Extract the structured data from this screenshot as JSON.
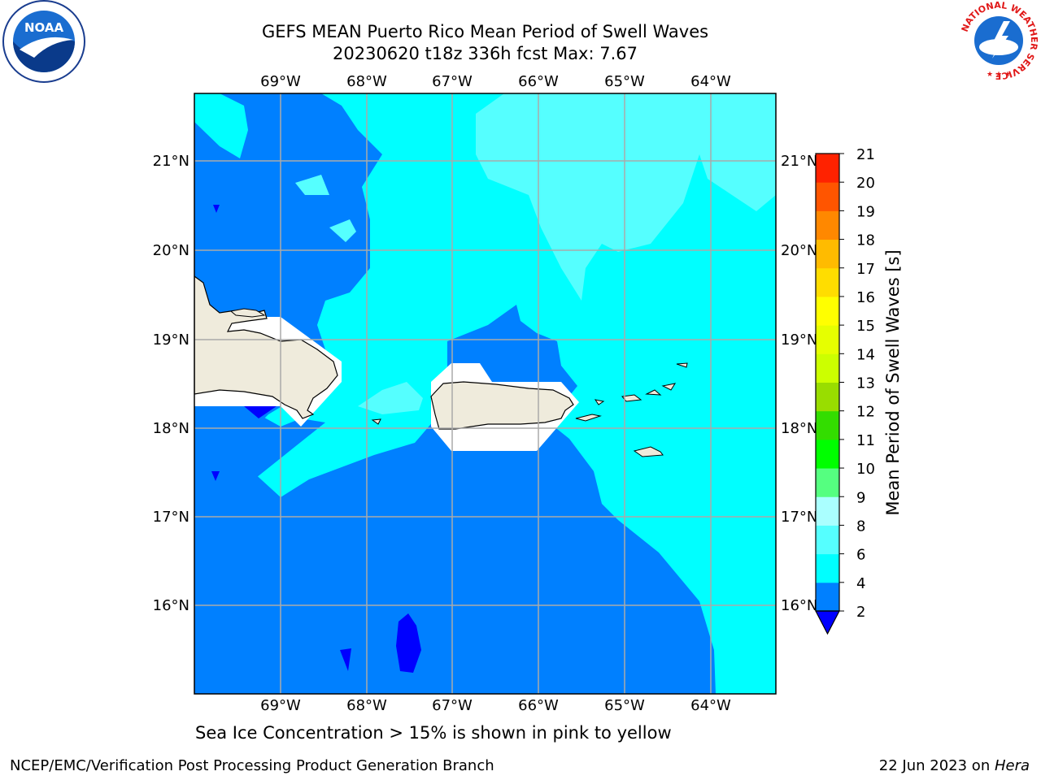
{
  "header": {
    "title_line1": "GEFS MEAN Puerto Rico Mean Period of Swell Waves",
    "title_line2": "20230620 t18z 336h fcst   Max: 7.67"
  },
  "map": {
    "lon_labels": [
      "69°W",
      "68°W",
      "67°W",
      "66°W",
      "65°W",
      "64°W"
    ],
    "lat_labels": [
      "21°N",
      "20°N",
      "19°N",
      "18°N",
      "17°N",
      "16°N"
    ],
    "colors": {
      "land": "#efebdc",
      "ocean_2_4": "#0080ff",
      "ocean_4_6": "#00ffff",
      "ocean_6_8": "#55ffff",
      "below_2": "#0000ff",
      "grid": "#aaaaaa"
    }
  },
  "colorbar": {
    "label": "Mean Period of Swell Waves [s]",
    "ticks": [
      "2",
      "4",
      "6",
      "8",
      "9",
      "10",
      "11",
      "12",
      "13",
      "14",
      "15",
      "16",
      "17",
      "18",
      "19",
      "20",
      "21"
    ],
    "colors": [
      "#0080ff",
      "#00ffff",
      "#55ffff",
      "#aaffff",
      "#55ff80",
      "#00ff00",
      "#33dd00",
      "#99dd00",
      "#ccff00",
      "#e6ff00",
      "#ffff00",
      "#ffdd00",
      "#ffbb00",
      "#ff8800",
      "#ff5500",
      "#ff2200"
    ],
    "extend_below_color": "#0000ff"
  },
  "caption": "Sea Ice Concentration > 15% is shown in pink to yellow",
  "footer": {
    "left": "NCEP/EMC/Verification Post Processing Product Generation Branch",
    "right_prefix": "22 Jun 2023 on ",
    "right_host": "Hera"
  },
  "logos": {
    "left": "NOAA",
    "right_ring": "NATIONAL WEATHER SERVICE"
  }
}
